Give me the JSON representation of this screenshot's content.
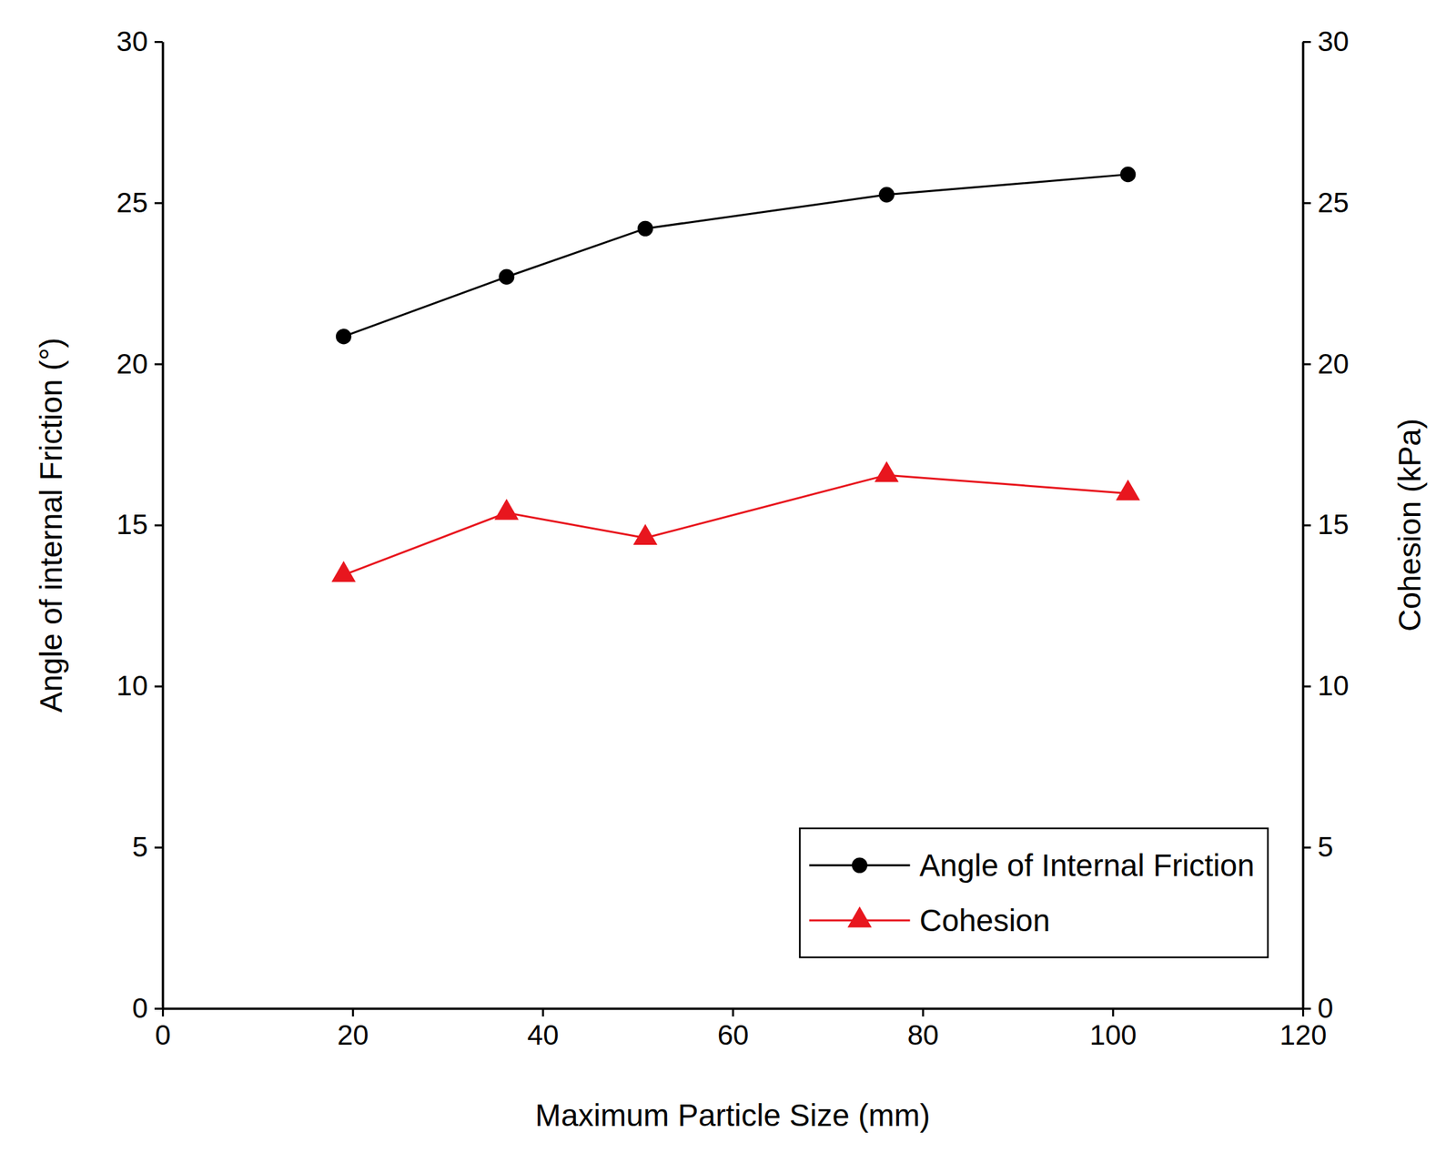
{
  "chart_data": {
    "type": "line",
    "x_label": "Maximum Particle Size (mm)",
    "y_label": "Angle of internal Friction (°)",
    "y2_label": "Cohesion (kPa)",
    "x": [
      19.05,
      36.2,
      50.8,
      76.2,
      101.6
    ],
    "series": [
      {
        "name": "Angle of Internal Friction",
        "color": "#000000",
        "marker": "circle",
        "line_style": "solid",
        "values": [
          20.85,
          22.7,
          24.2,
          25.25,
          25.88
        ]
      },
      {
        "name": "Cohesion",
        "color": "#e8161e",
        "marker": "triangle",
        "line_style": "solid",
        "axis": "y2",
        "values": [
          13.45,
          15.38,
          14.6,
          16.55,
          15.98
        ]
      }
    ],
    "xlim": [
      0,
      120
    ],
    "xticks": [
      0,
      20,
      40,
      60,
      80,
      100,
      120
    ],
    "ylim": [
      0,
      30
    ],
    "yticks": [
      0,
      5,
      10,
      15,
      20,
      25,
      30
    ],
    "y2lim": [
      0,
      30
    ],
    "y2ticks": [
      0,
      5,
      10,
      15,
      20,
      25,
      30
    ],
    "legend": "lower right"
  }
}
